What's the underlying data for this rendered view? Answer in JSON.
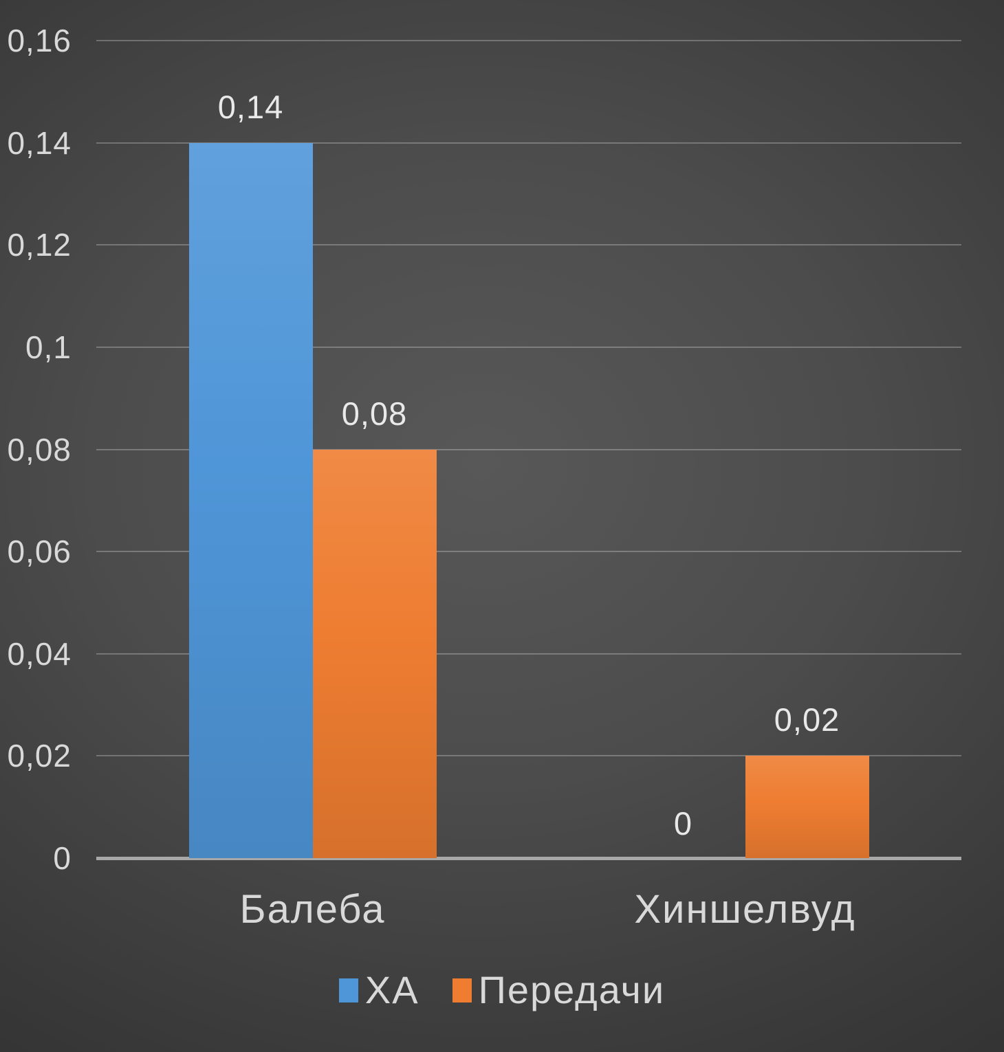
{
  "chart_data": {
    "type": "bar",
    "categories": [
      "Балеба",
      "Хиншелвуд"
    ],
    "series": [
      {
        "name": "ХА",
        "color": "#4f96d8",
        "values": [
          0.14,
          0
        ],
        "labels": [
          "0,14",
          "0"
        ]
      },
      {
        "name": "Передачи",
        "color": "#ee7d31",
        "values": [
          0.08,
          0.02
        ],
        "labels": [
          "0,08",
          "0,02"
        ]
      }
    ],
    "title": "",
    "xlabel": "",
    "ylabel": "",
    "ylim": [
      0,
      0.16
    ],
    "y_tick_values": [
      0,
      0.02,
      0.04,
      0.06,
      0.08,
      0.1,
      0.12,
      0.14,
      0.16
    ],
    "y_tick_labels": [
      "0",
      "0,02",
      "0,04",
      "0,06",
      "0,08",
      "0,1",
      "0,12",
      "0,14",
      "0,16"
    ],
    "decimal_separator": ",",
    "grid": true,
    "legend_position": "bottom"
  },
  "colors": {
    "background_center": "#585858",
    "background_edge": "#252525",
    "gridline": "rgba(255,255,255,0.25)",
    "axis_line": "#a8a8a8",
    "tick_text": "#d9d9d9",
    "data_label_text": "#e9e9e9",
    "category_text": "#d9d9d9",
    "legend_text": "#d9d9d9"
  }
}
